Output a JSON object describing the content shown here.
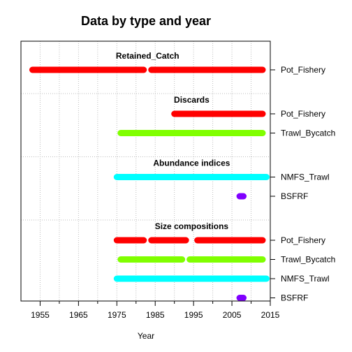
{
  "chart_data": {
    "type": "timeline",
    "title": "Data by type and year",
    "xlabel": "Year",
    "ylabel": "",
    "xlim": [
      1950,
      2015
    ],
    "xticks": [
      1955,
      1965,
      1975,
      1985,
      1995,
      2005,
      2015
    ],
    "grid": true,
    "sections": [
      {
        "label": "Retained_Catch",
        "rows": [
          {
            "fleet": "Pot_Fishery",
            "color": "#ff0000",
            "segments": [
              [
                1953,
                1982
              ],
              [
                1984,
                2013
              ]
            ]
          }
        ]
      },
      {
        "label": "Discards",
        "rows": [
          {
            "fleet": "Pot_Fishery",
            "color": "#ff0000",
            "segments": [
              [
                1990,
                2013
              ]
            ]
          },
          {
            "fleet": "Trawl_Bycatch",
            "color": "#80ff00",
            "segments": [
              [
                1976,
                2013
              ]
            ]
          }
        ]
      },
      {
        "label": "Abundance indices",
        "rows": [
          {
            "fleet": "NMFS_Trawl",
            "color": "#00ffff",
            "segments": [
              [
                1975,
                2014
              ]
            ]
          },
          {
            "fleet": "BSFRF",
            "color": "#8000ff",
            "segments": [
              [
                2007,
                2008
              ]
            ]
          }
        ]
      },
      {
        "label": "Size compositions",
        "rows": [
          {
            "fleet": "Pot_Fishery",
            "color": "#ff0000",
            "segments": [
              [
                1975,
                1982
              ],
              [
                1984,
                1993
              ],
              [
                1996,
                2013
              ]
            ]
          },
          {
            "fleet": "Trawl_Bycatch",
            "color": "#80ff00",
            "segments": [
              [
                1976,
                1992
              ],
              [
                1994,
                2013
              ]
            ]
          },
          {
            "fleet": "NMFS_Trawl",
            "color": "#00ffff",
            "segments": [
              [
                1975,
                2014
              ]
            ]
          },
          {
            "fleet": "BSFRF",
            "color": "#8000ff",
            "segments": [
              [
                2007,
                2008
              ]
            ]
          }
        ]
      }
    ]
  }
}
